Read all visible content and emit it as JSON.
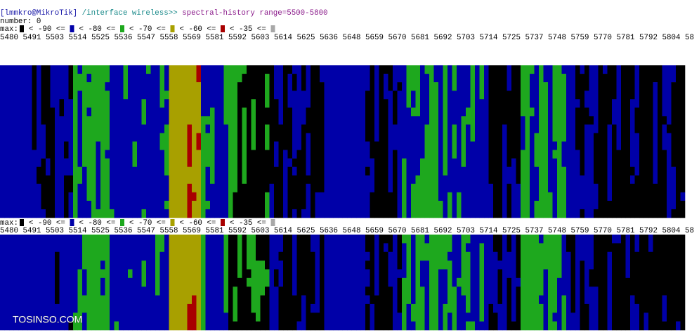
{
  "prompt": {
    "user_host": "[lmmkro@MikroTik]",
    "path": "/interface wireless>>",
    "command": "spectral-history range=5500-5800"
  },
  "number_line": "number: 0",
  "legend": {
    "label": "max:",
    "swatches": [
      "#000000",
      "#0000a8",
      "#1ea81e",
      "#a8a000",
      "#a80000",
      "#a8a8a8"
    ],
    "thresholds": [
      "< -90 <=",
      "< -80 <=",
      "< -70 <=",
      "< -60 <=",
      "< -35 <="
    ]
  },
  "frequencies": [
    "5480",
    "5491",
    "5503",
    "5514",
    "5525",
    "5536",
    "5547",
    "5558",
    "5569",
    "5581",
    "5592",
    "5603",
    "5614",
    "5625",
    "5636",
    "5648",
    "5659",
    "5670",
    "5681",
    "5692",
    "5703",
    "5714",
    "5725",
    "5737",
    "5748",
    "5759",
    "5770",
    "5781",
    "5792",
    "5804",
    "58"
  ],
  "watermark": "TOSINSO.COM"
}
